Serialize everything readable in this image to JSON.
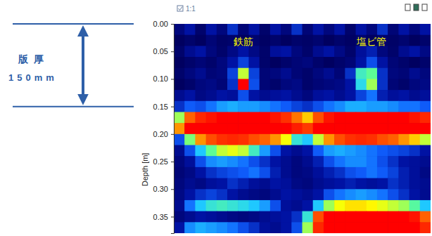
{
  "chart_data": {
    "type": "heatmap",
    "zoom_label": "1:1",
    "ylabel": "Depth [m]",
    "ylim": [
      0,
      0.38
    ],
    "yticks": [
      {
        "value": 0,
        "label": "0.00"
      },
      0.05,
      {
        "value": 0.1,
        "label": "0.10"
      },
      0.15,
      {
        "value": 0.2,
        "label": "0.20"
      },
      0.25,
      {
        "value": 0.3,
        "label": "0.30"
      },
      0.35
    ],
    "tick_labels": "y",
    "thickness": {
      "labels": [
        "版厚",
        "150mm"
      ],
      "from": 0,
      "to": 0.15
    },
    "targets": [
      {
        "label": "鉄筋",
        "column": 6,
        "depth": 0.11
      },
      {
        "label": "塩ビ管",
        "column": 18,
        "depth": 0.11
      }
    ],
    "y": [
      0.01,
      0.03,
      0.05,
      0.07,
      0.09,
      0.11,
      0.13,
      0.15,
      0.17,
      0.19,
      0.21,
      0.23,
      0.25,
      0.27,
      0.29,
      0.31,
      0.33,
      0.35,
      0.37
    ],
    "cells": [
      [
        20,
        30,
        15,
        30,
        20,
        35,
        18,
        30,
        15,
        30,
        20,
        35,
        18,
        30,
        20,
        30,
        15,
        30,
        20,
        35,
        18,
        30,
        20,
        30
      ],
      [
        12,
        15,
        12,
        18,
        14,
        15,
        12,
        16,
        13,
        15,
        12,
        15,
        14,
        16,
        12,
        15,
        13,
        16,
        12,
        15,
        14,
        16,
        12,
        15
      ],
      [
        15,
        25,
        30,
        20,
        15,
        22,
        30,
        22,
        15,
        28,
        30,
        20,
        15,
        25,
        30,
        22,
        15,
        28,
        32,
        20,
        15,
        25,
        30,
        22
      ],
      [
        12,
        15,
        18,
        15,
        20,
        30,
        38,
        30,
        15,
        12,
        15,
        18,
        20,
        15,
        12,
        15,
        18,
        30,
        40,
        30,
        18,
        15,
        12,
        15
      ],
      [
        15,
        20,
        25,
        18,
        20,
        38,
        72,
        38,
        18,
        20,
        25,
        18,
        15,
        20,
        25,
        18,
        35,
        62,
        66,
        35,
        20,
        18,
        25,
        20
      ],
      [
        12,
        15,
        20,
        22,
        18,
        35,
        100,
        40,
        18,
        15,
        20,
        22,
        15,
        18,
        20,
        22,
        30,
        58,
        70,
        35,
        18,
        15,
        20,
        22
      ],
      [
        25,
        30,
        22,
        25,
        30,
        28,
        40,
        30,
        25,
        28,
        30,
        25,
        20,
        28,
        30,
        25,
        30,
        38,
        45,
        32,
        28,
        30,
        25,
        28
      ],
      [
        35,
        42,
        40,
        45,
        50,
        52,
        50,
        50,
        48,
        45,
        42,
        38,
        35,
        40,
        45,
        48,
        52,
        52,
        50,
        50,
        48,
        45,
        45,
        42
      ],
      [
        70,
        90,
        96,
        98,
        100,
        100,
        100,
        100,
        100,
        98,
        95,
        88,
        80,
        92,
        98,
        100,
        100,
        100,
        100,
        100,
        100,
        100,
        98,
        96
      ],
      [
        85,
        100,
        100,
        100,
        100,
        100,
        100,
        100,
        100,
        100,
        100,
        97,
        94,
        100,
        100,
        100,
        100,
        100,
        100,
        100,
        100,
        100,
        100,
        100
      ],
      [
        40,
        68,
        85,
        92,
        95,
        96,
        95,
        92,
        90,
        85,
        75,
        60,
        55,
        72,
        85,
        92,
        95,
        96,
        95,
        92,
        90,
        85,
        80,
        72
      ],
      [
        25,
        40,
        55,
        66,
        72,
        74,
        72,
        62,
        50,
        40,
        30,
        25,
        30,
        42,
        50,
        52,
        50,
        48,
        45,
        42,
        40,
        38,
        35,
        30
      ],
      [
        20,
        28,
        40,
        48,
        50,
        48,
        45,
        40,
        35,
        30,
        25,
        20,
        25,
        32,
        40,
        45,
        48,
        48,
        45,
        40,
        35,
        30,
        28,
        25
      ],
      [
        18,
        22,
        30,
        35,
        38,
        40,
        42,
        45,
        40,
        32,
        25,
        20,
        22,
        28,
        32,
        35,
        40,
        42,
        45,
        42,
        38,
        32,
        28,
        22
      ],
      [
        20,
        25,
        22,
        28,
        30,
        35,
        32,
        28,
        25,
        30,
        28,
        22,
        20,
        25,
        28,
        30,
        32,
        30,
        28,
        30,
        35,
        32,
        28,
        25
      ],
      [
        22,
        30,
        35,
        38,
        35,
        30,
        25,
        22,
        20,
        25,
        30,
        28,
        25,
        30,
        40,
        45,
        48,
        50,
        48,
        45,
        40,
        35,
        30,
        25
      ],
      [
        25,
        45,
        55,
        60,
        62,
        60,
        58,
        55,
        50,
        40,
        28,
        25,
        30,
        55,
        70,
        75,
        78,
        78,
        76,
        74,
        72,
        70,
        65,
        55
      ],
      [
        20,
        25,
        30,
        28,
        25,
        22,
        20,
        22,
        25,
        28,
        30,
        35,
        60,
        92,
        100,
        100,
        100,
        100,
        100,
        100,
        100,
        100,
        98,
        90
      ],
      [
        30,
        48,
        52,
        50,
        48,
        45,
        40,
        35,
        28,
        25,
        30,
        40,
        70,
        96,
        100,
        100,
        100,
        100,
        100,
        100,
        100,
        100,
        100,
        96
      ]
    ]
  }
}
